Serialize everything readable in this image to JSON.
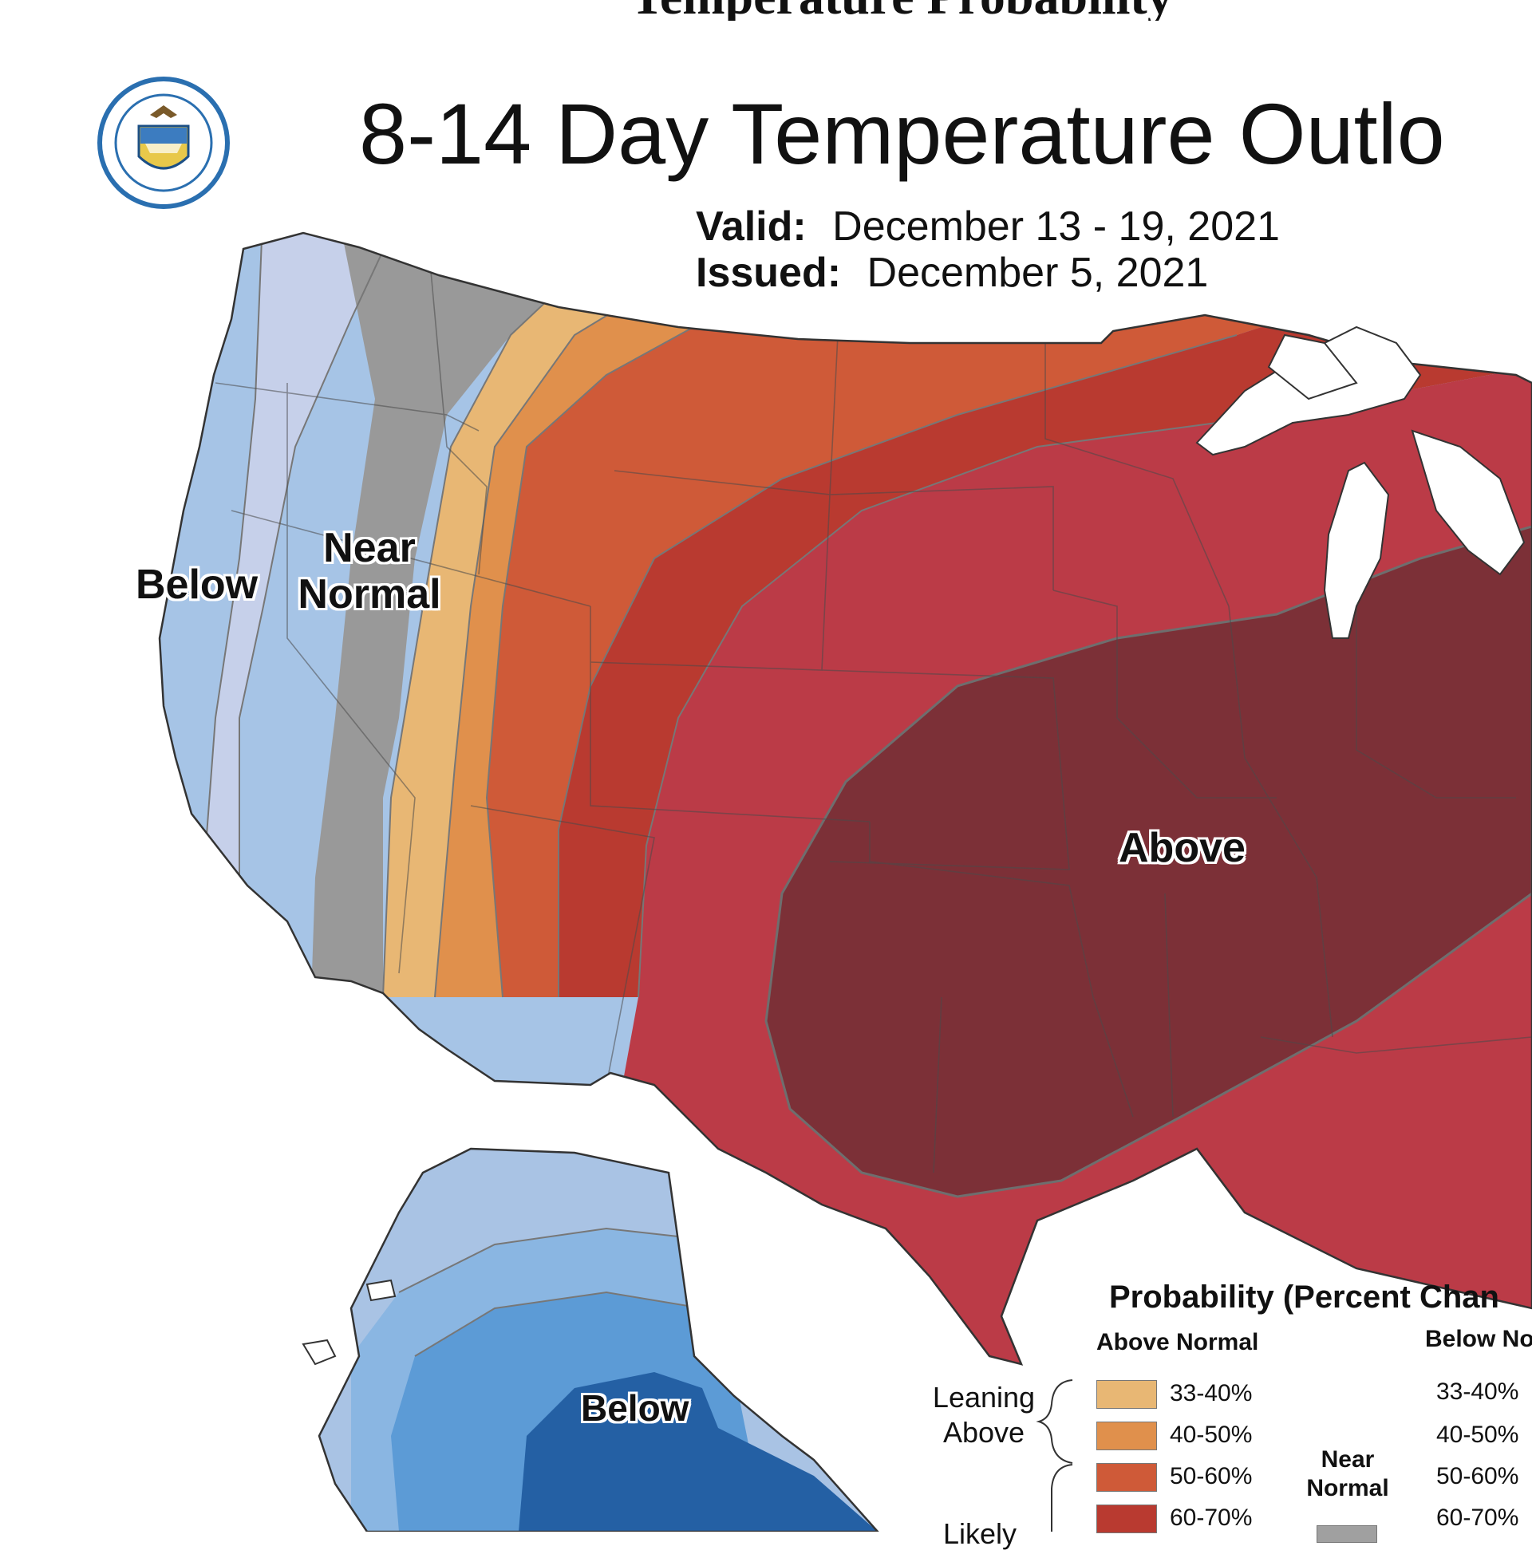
{
  "header": {
    "top_caption": "Temperature Probability",
    "title": "8-14 Day Temperature Outlo",
    "valid_label": "Valid:",
    "valid_value": "December 13 - 19, 2021",
    "issued_label": "Issued:",
    "issued_value": "December 5, 2021"
  },
  "map_labels": {
    "west_below": "Below",
    "near_normal_line1": "Near",
    "near_normal_line2": "Normal",
    "above": "Above",
    "alaska_below": "Below"
  },
  "legend": {
    "title": "Probability (Percent Chan",
    "above_header": "Above Normal",
    "below_header": "Below No",
    "leaning_above_line1": "Leaning",
    "leaning_above_line2": "Above",
    "likely_partial": "Likely",
    "near_normal_line1": "Near",
    "near_normal_line2": "Normal",
    "above_ranges": [
      "33-40%",
      "40-50%",
      "50-60%",
      "60-70%"
    ],
    "below_ranges": [
      "33-40%",
      "40-50%",
      "50-60%",
      "60-70%"
    ],
    "above_colors": [
      "#e8b774",
      "#e0904c",
      "#cf5a38",
      "#b93a30"
    ],
    "near_normal_color": "#a0a0a0"
  },
  "colors": {
    "below_light": "#a6c4e6",
    "below_lightest": "#c6d0ea",
    "near_normal": "#999999",
    "above_33": "#e8b774",
    "above_40": "#e0904c",
    "above_50": "#cf5a38",
    "above_60": "#b93a30",
    "above_70": "#bb3b47",
    "above_80": "#7c3037",
    "ak_1": "#a9c3e4",
    "ak_2": "#8ab6e2",
    "ak_3": "#5c9bd6",
    "ak_4": "#2460a4"
  },
  "icons": [
    "department-of-commerce-seal"
  ]
}
